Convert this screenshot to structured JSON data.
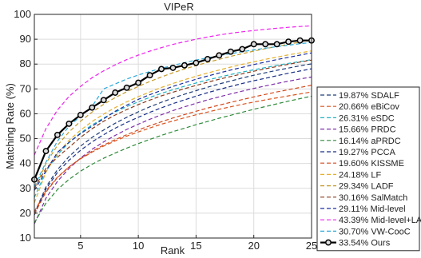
{
  "chart_data": {
    "type": "line",
    "title": "VIPeR",
    "xlabel": "Rank",
    "ylabel": "Matching Rate (%)",
    "xlim": [
      1,
      25
    ],
    "ylim": [
      10,
      100
    ],
    "xticks": [
      5,
      10,
      15,
      20,
      25
    ],
    "yticks": [
      10,
      20,
      30,
      40,
      50,
      60,
      70,
      80,
      90,
      100
    ],
    "grid": true,
    "legend_position": "outside-right",
    "x": [
      1,
      2,
      3,
      4,
      5,
      6,
      7,
      8,
      9,
      10,
      11,
      12,
      13,
      14,
      15,
      16,
      17,
      18,
      19,
      20,
      21,
      22,
      23,
      24,
      25
    ],
    "series": [
      {
        "name": "19.87% SDALF",
        "color": "#1f3d78",
        "dash": "dashed",
        "values": [
          19.87,
          30.5,
          37.5,
          42.8,
          47.0,
          50.5,
          53.5,
          56.2,
          58.6,
          60.8,
          62.8,
          64.6,
          66.3,
          67.9,
          69.3,
          70.7,
          72.0,
          73.2,
          74.4,
          75.5,
          76.5,
          77.5,
          78.4,
          79.3,
          80.1
        ]
      },
      {
        "name": "20.66% eBiCov",
        "color": "#d9531e",
        "dash": "dashed",
        "values": [
          20.66,
          29.0,
          34.5,
          38.6,
          41.9,
          44.6,
          47.0,
          49.1,
          51.0,
          52.7,
          54.3,
          55.8,
          57.1,
          58.4,
          59.6,
          60.7,
          61.8,
          62.8,
          63.8,
          64.7,
          65.6,
          66.4,
          67.2,
          68.0,
          68.8
        ]
      },
      {
        "name": "26.31% eSDC",
        "color": "#20b2c4",
        "dash": "dashed",
        "values": [
          26.31,
          36.8,
          43.5,
          48.4,
          52.3,
          55.5,
          58.3,
          60.7,
          62.9,
          64.8,
          66.6,
          68.2,
          69.7,
          71.1,
          72.4,
          73.6,
          74.7,
          75.8,
          76.8,
          77.7,
          78.6,
          79.5,
          80.3,
          81.0,
          81.8
        ]
      },
      {
        "name": "15.66% PRDC",
        "color": "#7e2fa8",
        "dash": "dashed",
        "values": [
          15.66,
          26.0,
          32.8,
          38.0,
          42.2,
          45.7,
          48.7,
          51.3,
          53.7,
          55.8,
          57.8,
          59.6,
          61.3,
          62.8,
          64.2,
          65.6,
          66.8,
          68.0,
          69.1,
          70.2,
          71.2,
          72.2,
          73.1,
          74.0,
          74.8
        ]
      },
      {
        "name": "16.14% aPRDC",
        "color": "#2e8b3a",
        "dash": "dashed",
        "values": [
          16.14,
          24.0,
          29.5,
          33.6,
          36.9,
          39.7,
          42.1,
          44.2,
          46.2,
          48.0,
          49.7,
          51.3,
          52.8,
          54.2,
          55.6,
          56.9,
          58.2,
          59.4,
          60.6,
          61.8,
          62.9,
          64.0,
          65.1,
          66.1,
          67.1
        ]
      },
      {
        "name": "19.27% PCCA",
        "color": "#1a2f86",
        "dash": "dashed",
        "values": [
          19.27,
          29.7,
          36.4,
          41.3,
          45.3,
          48.7,
          51.6,
          54.2,
          56.5,
          58.6,
          60.6,
          62.4,
          64.1,
          65.6,
          67.1,
          68.5,
          69.8,
          71.0,
          72.2,
          73.3,
          74.3,
          75.3,
          76.3,
          77.2,
          78.1
        ]
      },
      {
        "name": "19.60% KISSME",
        "color": "#d2491c",
        "dash": "dashed",
        "values": [
          19.6,
          28.5,
          34.3,
          38.6,
          42.0,
          44.9,
          47.4,
          49.6,
          51.6,
          53.5,
          55.2,
          56.8,
          58.3,
          59.7,
          61.0,
          62.3,
          63.5,
          64.6,
          65.7,
          66.8,
          67.8,
          68.8,
          69.7,
          70.6,
          71.5
        ]
      },
      {
        "name": "24.18% LF",
        "color": "#e6b02c",
        "dash": "dashed",
        "values": [
          24.18,
          36.5,
          44.0,
          49.3,
          53.4,
          56.9,
          59.9,
          62.5,
          64.8,
          66.9,
          68.8,
          70.6,
          72.2,
          73.7,
          75.1,
          76.4,
          77.6,
          78.8,
          79.9,
          80.9,
          81.9,
          82.8,
          83.7,
          84.5,
          85.3
        ]
      },
      {
        "name": "29.34% LADF",
        "color": "#c49a2a",
        "dash": "dashed",
        "values": [
          29.34,
          40.0,
          47.3,
          52.7,
          57.0,
          60.7,
          63.8,
          66.5,
          68.9,
          71.0,
          73.0,
          74.8,
          76.5,
          78.0,
          79.4,
          80.7,
          81.9,
          83.1,
          84.2,
          85.2,
          86.2,
          87.1,
          88.0,
          88.8,
          89.6
        ]
      },
      {
        "name": "30.16% SalMatch",
        "color": "#8a3c1e",
        "dash": "dashed",
        "values": [
          30.16,
          38.0,
          42.5,
          46.5,
          50.5,
          54.0,
          57.0,
          59.5,
          61.7,
          63.7,
          65.5,
          67.2,
          68.7,
          70.1,
          71.4,
          72.7,
          73.9,
          75.0,
          76.1,
          77.1,
          78.1,
          79.0,
          79.9,
          80.8,
          81.6
        ]
      },
      {
        "name": "29.11% Mid-level",
        "color": "#1c2fa0",
        "dash": "dashed",
        "values": [
          29.11,
          37.0,
          44.5,
          48.5,
          52.0,
          55.0,
          58.0,
          61.0,
          63.5,
          65.8,
          67.7,
          69.4,
          71.0,
          72.5,
          73.9,
          75.2,
          76.4,
          77.6,
          78.7,
          79.8,
          80.8,
          81.8,
          82.7,
          83.6,
          84.5
        ]
      },
      {
        "name": "43.39% Mid-level+LADF",
        "color": "#ee22ee",
        "dash": "dashed",
        "values": [
          43.39,
          54.0,
          61.5,
          67.0,
          71.0,
          74.5,
          77.3,
          79.7,
          81.8,
          83.6,
          85.2,
          86.6,
          87.9,
          89.0,
          90.0,
          90.9,
          91.7,
          92.4,
          93.0,
          93.5,
          94.0,
          94.4,
          94.8,
          95.1,
          95.4
        ]
      },
      {
        "name": "30.70% VW-CooC",
        "color": "#28a8d8",
        "dash": "dashed",
        "values": [
          30.7,
          40.5,
          49.0,
          55.0,
          59.0,
          63.0,
          70.0,
          72.0,
          74.0,
          75.6,
          77.0,
          78.3,
          79.5,
          80.6,
          81.6,
          82.5,
          83.4,
          84.2,
          85.0,
          85.7,
          86.4,
          87.0,
          87.6,
          88.2,
          88.7
        ]
      },
      {
        "name": "33.54% Ours",
        "color": "#000000",
        "dash": "solid",
        "marker": "circle",
        "values": [
          33.54,
          45.0,
          51.5,
          56.0,
          59.5,
          62.5,
          65.5,
          68.5,
          70.5,
          72.5,
          75.5,
          78.0,
          78.5,
          79.5,
          80.5,
          82.0,
          83.5,
          85.0,
          86.0,
          88.0,
          88.0,
          88.0,
          89.0,
          89.5,
          89.5
        ]
      }
    ]
  }
}
